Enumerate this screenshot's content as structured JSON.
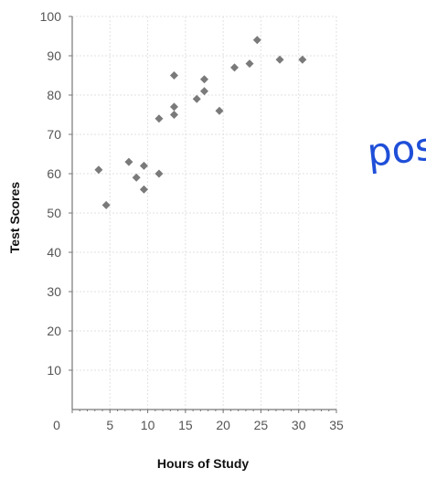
{
  "chart_data": {
    "type": "scatter",
    "title": "",
    "xlabel": "Hours of Study",
    "ylabel": "Test Scores",
    "xlim": [
      0,
      35
    ],
    "ylim": [
      0,
      100
    ],
    "xticks": [
      0,
      5,
      10,
      15,
      20,
      25,
      30,
      35
    ],
    "yticks": [
      10,
      20,
      30,
      40,
      50,
      60,
      70,
      80,
      90,
      100
    ],
    "grid": true,
    "marker_color": "#7a7a7a",
    "annotation": "pos",
    "annotation_color": "#1f4fd8",
    "points": [
      {
        "x": 3.5,
        "y": 61
      },
      {
        "x": 4.5,
        "y": 52
      },
      {
        "x": 7.5,
        "y": 63
      },
      {
        "x": 8.5,
        "y": 59
      },
      {
        "x": 9.5,
        "y": 62
      },
      {
        "x": 9.5,
        "y": 56
      },
      {
        "x": 11.5,
        "y": 74
      },
      {
        "x": 11.5,
        "y": 60
      },
      {
        "x": 13.5,
        "y": 85
      },
      {
        "x": 13.5,
        "y": 77
      },
      {
        "x": 13.5,
        "y": 75
      },
      {
        "x": 16.5,
        "y": 79
      },
      {
        "x": 17.5,
        "y": 84
      },
      {
        "x": 17.5,
        "y": 81
      },
      {
        "x": 19.5,
        "y": 76
      },
      {
        "x": 21.5,
        "y": 87
      },
      {
        "x": 23.5,
        "y": 88
      },
      {
        "x": 24.5,
        "y": 94
      },
      {
        "x": 27.5,
        "y": 89
      },
      {
        "x": 30.5,
        "y": 89
      }
    ]
  }
}
